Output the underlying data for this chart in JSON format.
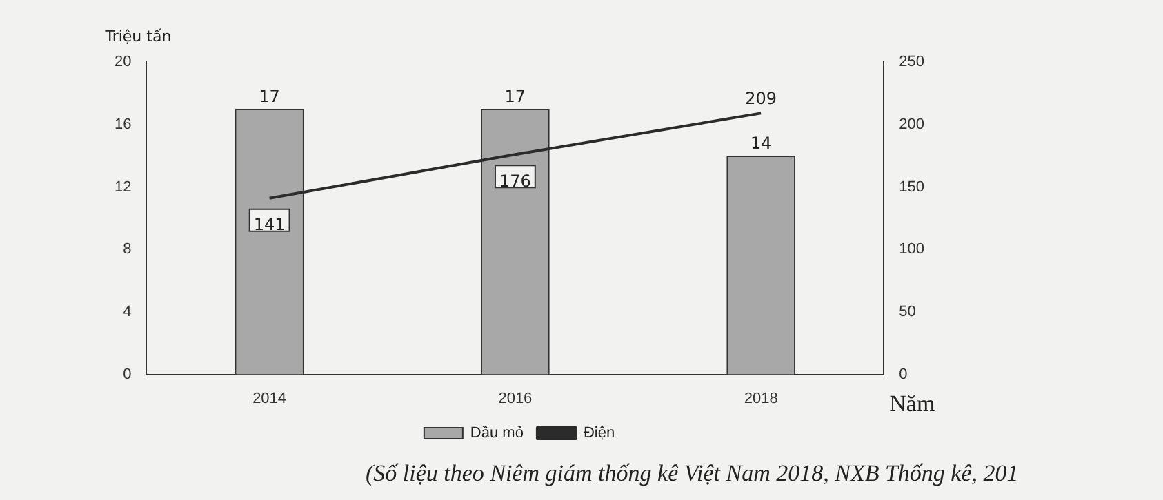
{
  "chart_data": {
    "type": "bar",
    "ylabel": "Triệu tấn",
    "xlabel": "Năm",
    "categories": [
      "2014",
      "2016",
      "2018"
    ],
    "series": [
      {
        "name": "Dầu mỏ",
        "color": "#a8a8a8",
        "values": [
          17,
          17,
          14
        ]
      },
      {
        "name": "Điện",
        "type": "line",
        "color": "#2b2b2b",
        "axis": "y2",
        "values": [
          141,
          176,
          209
        ]
      }
    ],
    "ylim": [
      0,
      20
    ],
    "yticks": [
      0,
      4,
      8,
      12,
      16,
      20
    ],
    "y2lim": [
      0,
      250
    ],
    "y2ticks": [
      0,
      50,
      100,
      150,
      200,
      250
    ],
    "data_labels": true,
    "grid": false,
    "legend": "bottom",
    "marker": "none",
    "line_style": "solid",
    "annotations": [
      "(Số liệu theo Niêm giám thống kê Việt Nam 2018, NXB Thống kê, 201"
    ]
  }
}
